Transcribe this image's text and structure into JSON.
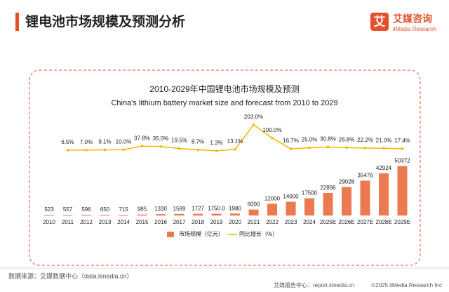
{
  "header": {
    "title": "锂电池市场规模及预测分析"
  },
  "logo": {
    "name": "艾媒咨询",
    "sub": "iiMedia Research",
    "mark": "艾"
  },
  "chart_data": {
    "type": "bar",
    "title": "2010-2029年中国锂电池市场规模及预测",
    "subtitle": "China's lithium battery market size and forecast from 2010 to 2029",
    "categories": [
      "2010",
      "2011",
      "2012",
      "2013",
      "2014",
      "2015",
      "2016",
      "2017",
      "2018",
      "2019",
      "2020",
      "2021",
      "2022",
      "2023",
      "2024",
      "2025E",
      "2026E",
      "2027E",
      "2028E",
      "2029E"
    ],
    "ylim": [
      0,
      105000
    ],
    "y2lim": [
      -500,
      300
    ],
    "legend": "bottom",
    "series": [
      {
        "name": "市场规模（亿元）",
        "color": "#ec7a50",
        "values": [
          523,
          557,
          596,
          650,
          715,
          985,
          1330,
          1589,
          1727,
          1750,
          1980,
          6000,
          12000,
          14000,
          17500,
          22896,
          29028,
          35476,
          42924,
          50372
        ],
        "value_labels": [
          "523",
          "557",
          "596",
          "650",
          "715",
          "985",
          "1330",
          "1589",
          "1727",
          "1750.0",
          "1980",
          "6000",
          "12000",
          "14000",
          "17500",
          "22896",
          "29028",
          "35476",
          "42924",
          "50372"
        ]
      },
      {
        "name": "同比增长（%）",
        "type": "line",
        "axis": "y2",
        "color": "#f2b705",
        "values": [
          null,
          6.5,
          7.0,
          9.1,
          10.0,
          37.8,
          35.0,
          19.5,
          8.7,
          1.3,
          13.1,
          203.0,
          100.0,
          16.7,
          25.0,
          30.8,
          26.8,
          22.2,
          21.0,
          17.4
        ],
        "value_labels": [
          null,
          "6.5%",
          "7.0%",
          "9.1%",
          "10.0%",
          "37.8%",
          "35.0%",
          "19.5%",
          "8.7%",
          "1.3%",
          "13.1%",
          "203.0%",
          "100.0%",
          "16.7%",
          "25.0%",
          "30.8%",
          "26.8%",
          "22.2%",
          "21.0%",
          "17.4%"
        ]
      }
    ]
  },
  "footer": {
    "source": "数据来源：艾媒数据中心（data.iimedia.cn）",
    "site": "艾媒报告中心：report.iimedia.cn",
    "copyright": "©2025  iiMedia Research  Inc"
  }
}
